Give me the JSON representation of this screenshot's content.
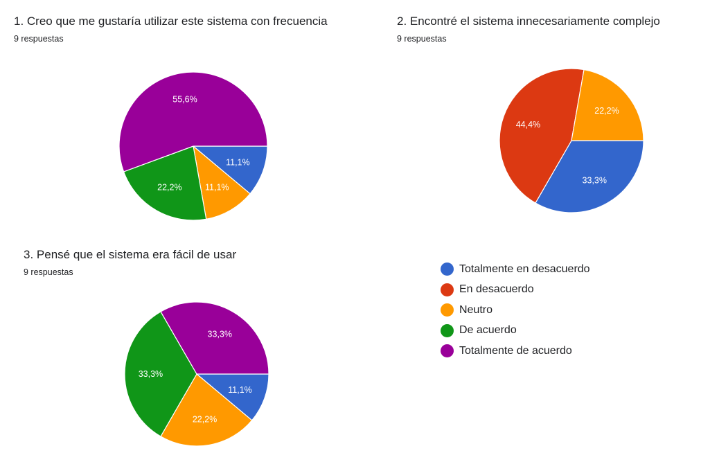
{
  "colors": {
    "Totalmente en desacuerdo": "#3366cc",
    "En desacuerdo": "#dc3912",
    "Neutro": "#ff9900",
    "De acuerdo": "#109618",
    "Totalmente de acuerdo": "#990099"
  },
  "legend": [
    "Totalmente en desacuerdo",
    "En desacuerdo",
    "Neutro",
    "De acuerdo",
    "Totalmente de acuerdo"
  ],
  "questions": [
    {
      "title": "1. Creo que me gustaría utilizar este sistema con frecuencia",
      "subtitle": "9 respuestas"
    },
    {
      "title": "2.  Encontré el sistema innecesariamente complejo",
      "subtitle": "9 respuestas"
    },
    {
      "title": "3.  Pensé que el sistema era fácil de usar",
      "subtitle": "9 respuestas"
    }
  ],
  "chart_data": [
    {
      "type": "pie",
      "title": "1. Creo que me gustaría utilizar este sistema con frecuencia",
      "subtitle": "9 respuestas",
      "categories": [
        "Totalmente en desacuerdo",
        "Neutro",
        "De acuerdo",
        "Totalmente de acuerdo"
      ],
      "values": [
        11.1,
        11.1,
        22.2,
        55.6
      ],
      "labels": [
        "11,1%",
        "11,1%",
        "22,2%",
        "55,6%"
      ]
    },
    {
      "type": "pie",
      "title": "2.  Encontré el sistema innecesariamente complejo",
      "subtitle": "9 respuestas",
      "categories": [
        "Totalmente en desacuerdo",
        "En desacuerdo",
        "Neutro"
      ],
      "values": [
        33.3,
        44.4,
        22.2
      ],
      "labels": [
        "33,3%",
        "44,4%",
        "22,2%"
      ]
    },
    {
      "type": "pie",
      "title": "3.  Pensé que el sistema era fácil de usar",
      "subtitle": "9 respuestas",
      "categories": [
        "Totalmente en desacuerdo",
        "Neutro",
        "De acuerdo",
        "Totalmente de acuerdo"
      ],
      "values": [
        11.1,
        22.2,
        33.3,
        33.3
      ],
      "labels": [
        "11,1%",
        "22,2%",
        "33,3%",
        "33,3%"
      ]
    }
  ]
}
